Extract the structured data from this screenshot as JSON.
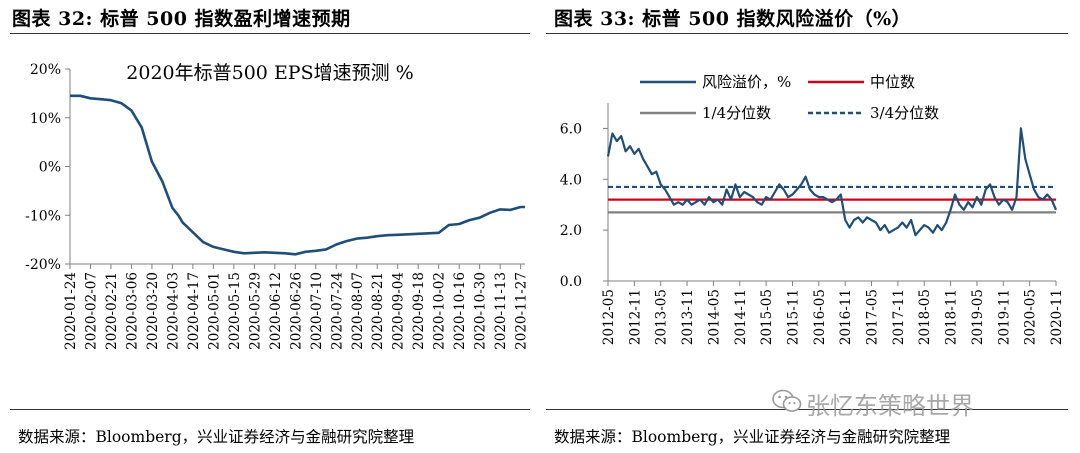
{
  "left": {
    "figure_title": "图表 32:  标普 500 指数盈利增速预期",
    "source": "数据来源：Bloomberg，兴业证券经济与金融研究院整理"
  },
  "right": {
    "figure_title": "图表 33:  标普 500 指数风险溢价（%）",
    "source": "数据来源：Bloomberg，兴业证券经济与金融研究院整理"
  },
  "watermark": {
    "text": "张忆东策略世界",
    "icon": "wechat-icon"
  },
  "colors": {
    "navy": "#1F4E79",
    "red": "#D0021B",
    "gray": "#808080",
    "axis": "#808080"
  },
  "chart_data": [
    {
      "type": "line",
      "title": "2020年标普500 EPS增速预测 %",
      "ylim": [
        -20,
        20
      ],
      "yticks": [
        "20%",
        "10%",
        "0%",
        "-10%",
        "-20%"
      ],
      "ytick_values": [
        20,
        10,
        0,
        -10,
        -20
      ],
      "xlim": [
        "2020-01-24",
        "2020-11-30"
      ],
      "xticks": [
        "2020-01-24",
        "2020-02-07",
        "2020-02-21",
        "2020-03-06",
        "2020-03-20",
        "2020-04-03",
        "2020-04-17",
        "2020-05-01",
        "2020-05-15",
        "2020-05-29",
        "2020-06-12",
        "2020-06-26",
        "2020-07-10",
        "2020-07-24",
        "2020-08-07",
        "2020-08-21",
        "2020-09-04",
        "2020-09-18",
        "2020-10-02",
        "2020-10-16",
        "2020-10-30",
        "2020-11-13",
        "2020-11-27"
      ],
      "grid": false,
      "series": [
        {
          "color": "#1F4E79",
          "x": [
            "2020-01-24",
            "2020-01-31",
            "2020-02-07",
            "2020-02-14",
            "2020-02-21",
            "2020-02-28",
            "2020-03-06",
            "2020-03-13",
            "2020-03-20",
            "2020-03-27",
            "2020-04-03",
            "2020-04-07",
            "2020-04-10",
            "2020-04-17",
            "2020-04-24",
            "2020-05-01",
            "2020-05-08",
            "2020-05-15",
            "2020-05-22",
            "2020-05-29",
            "2020-06-05",
            "2020-06-12",
            "2020-06-19",
            "2020-06-26",
            "2020-07-03",
            "2020-07-10",
            "2020-07-17",
            "2020-07-24",
            "2020-07-31",
            "2020-08-07",
            "2020-08-14",
            "2020-08-21",
            "2020-08-28",
            "2020-09-04",
            "2020-09-11",
            "2020-09-18",
            "2020-09-25",
            "2020-10-02",
            "2020-10-09",
            "2020-10-16",
            "2020-10-23",
            "2020-10-30",
            "2020-11-06",
            "2020-11-13",
            "2020-11-20",
            "2020-11-27",
            "2020-11-30"
          ],
          "values": [
            14.5,
            14.5,
            14.0,
            13.8,
            13.6,
            13.0,
            11.5,
            8.0,
            1.0,
            -3.0,
            -8.5,
            -10.0,
            -11.5,
            -13.5,
            -15.5,
            -16.5,
            -17.0,
            -17.5,
            -17.8,
            -17.7,
            -17.6,
            -17.7,
            -17.8,
            -18.0,
            -17.5,
            -17.3,
            -17.0,
            -16.0,
            -15.3,
            -14.8,
            -14.6,
            -14.3,
            -14.1,
            -14.0,
            -13.9,
            -13.8,
            -13.7,
            -13.6,
            -12.0,
            -11.8,
            -11.0,
            -10.5,
            -9.5,
            -8.8,
            -8.9,
            -8.3,
            -8.3
          ]
        }
      ]
    },
    {
      "type": "line",
      "ylim": [
        0,
        7
      ],
      "yticks": [
        "6.0",
        "4.0",
        "2.0",
        "0.0"
      ],
      "ytick_values": [
        6,
        4,
        2,
        0
      ],
      "xlim": [
        "2012-05",
        "2020-11"
      ],
      "xticks": [
        "2012-05",
        "2012-11",
        "2013-05",
        "2013-11",
        "2014-05",
        "2014-11",
        "2015-05",
        "2015-11",
        "2016-05",
        "2016-11",
        "2017-05",
        "2017-11",
        "2018-05",
        "2018-11",
        "2019-05",
        "2019-11",
        "2020-05",
        "2020-11"
      ],
      "grid": false,
      "legend_position": "top",
      "series": [
        {
          "name": "风险溢价，%",
          "color": "#1F4E79",
          "style": "solid",
          "x": [
            "2012-05",
            "2012-06",
            "2012-07",
            "2012-08",
            "2012-09",
            "2012-10",
            "2012-11",
            "2012-12",
            "2013-01",
            "2013-02",
            "2013-03",
            "2013-04",
            "2013-05",
            "2013-06",
            "2013-07",
            "2013-08",
            "2013-09",
            "2013-10",
            "2013-11",
            "2013-12",
            "2014-01",
            "2014-02",
            "2014-03",
            "2014-04",
            "2014-05",
            "2014-06",
            "2014-07",
            "2014-08",
            "2014-09",
            "2014-10",
            "2014-11",
            "2014-12",
            "2015-01",
            "2015-02",
            "2015-03",
            "2015-04",
            "2015-05",
            "2015-06",
            "2015-07",
            "2015-08",
            "2015-09",
            "2015-10",
            "2015-11",
            "2015-12",
            "2016-01",
            "2016-02",
            "2016-03",
            "2016-04",
            "2016-05",
            "2016-06",
            "2016-07",
            "2016-08",
            "2016-09",
            "2016-10",
            "2016-11",
            "2016-12",
            "2017-01",
            "2017-02",
            "2017-03",
            "2017-04",
            "2017-05",
            "2017-06",
            "2017-07",
            "2017-08",
            "2017-09",
            "2017-10",
            "2017-11",
            "2017-12",
            "2018-01",
            "2018-02",
            "2018-03",
            "2018-04",
            "2018-05",
            "2018-06",
            "2018-07",
            "2018-08",
            "2018-09",
            "2018-10",
            "2018-11",
            "2018-12",
            "2019-01",
            "2019-02",
            "2019-03",
            "2019-04",
            "2019-05",
            "2019-06",
            "2019-07",
            "2019-08",
            "2019-09",
            "2019-10",
            "2019-11",
            "2019-12",
            "2020-01",
            "2020-02",
            "2020-03",
            "2020-04",
            "2020-05",
            "2020-06",
            "2020-07",
            "2020-08",
            "2020-09",
            "2020-10",
            "2020-11"
          ],
          "values": [
            4.9,
            5.8,
            5.5,
            5.7,
            5.1,
            5.3,
            5.0,
            5.2,
            4.8,
            4.5,
            4.2,
            4.3,
            3.8,
            3.6,
            3.3,
            3.0,
            3.1,
            3.0,
            3.2,
            3.0,
            3.1,
            3.2,
            3.0,
            3.3,
            3.1,
            3.2,
            3.0,
            3.6,
            3.2,
            3.8,
            3.3,
            3.5,
            3.4,
            3.3,
            3.1,
            3.0,
            3.3,
            3.2,
            3.5,
            3.8,
            3.6,
            3.3,
            3.4,
            3.6,
            3.8,
            4.1,
            3.6,
            3.4,
            3.3,
            3.3,
            3.2,
            3.1,
            3.2,
            3.4,
            2.4,
            2.1,
            2.4,
            2.5,
            2.3,
            2.5,
            2.4,
            2.3,
            2.0,
            2.2,
            1.9,
            2.0,
            2.1,
            2.3,
            2.1,
            2.4,
            1.8,
            2.0,
            2.2,
            2.1,
            1.9,
            2.2,
            2.0,
            2.3,
            2.8,
            3.4,
            3.0,
            2.8,
            3.1,
            2.9,
            3.3,
            3.0,
            3.6,
            3.8,
            3.3,
            3.0,
            3.2,
            3.1,
            2.8,
            3.3,
            6.0,
            4.8,
            4.2,
            3.6,
            3.3,
            3.2,
            3.4,
            3.2,
            2.8
          ]
        },
        {
          "name": "中位数",
          "color": "#D0021B",
          "style": "solid",
          "value": 3.2
        },
        {
          "name": "1/4分位数",
          "color": "#808080",
          "style": "solid",
          "value": 2.7
        },
        {
          "name": "3/4分位数",
          "color": "#1F4E79",
          "style": "dashed",
          "value": 3.7
        }
      ]
    }
  ]
}
